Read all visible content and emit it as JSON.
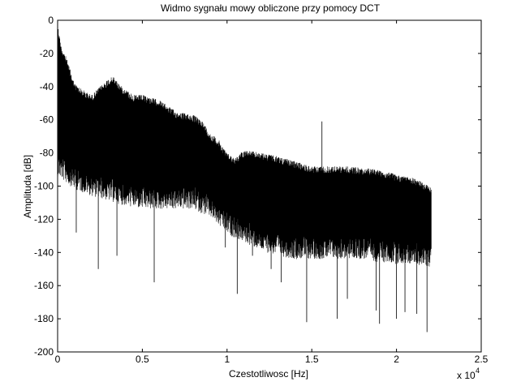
{
  "chart_data": {
    "type": "line",
    "title": "Widmo sygnału mowy obliczone przy pomocy DCT",
    "xlabel": "Czestotliwosc [Hz]",
    "ylabel": "Amplituda [dB]",
    "x_multiplier_label": "x 10",
    "x_multiplier_exponent": "4",
    "xlim": [
      0,
      2.5
    ],
    "ylim": [
      -200,
      0
    ],
    "x_ticks": [
      "0",
      "0.5",
      "1",
      "1.5",
      "2",
      "2.5"
    ],
    "y_ticks": [
      "0",
      "-20",
      "-40",
      "-60",
      "-80",
      "-100",
      "-120",
      "-140",
      "-160",
      "-180",
      "-200"
    ],
    "grid": false,
    "legend": "none",
    "line_color": "#000000",
    "series": [
      {
        "x_range": [
          0,
          2.205
        ],
        "x_unit_scale": 10000,
        "upper_envelope": [
          [
            0.0,
            -2
          ],
          [
            0.02,
            -15
          ],
          [
            0.05,
            -22
          ],
          [
            0.1,
            -38
          ],
          [
            0.15,
            -42
          ],
          [
            0.2,
            -45
          ],
          [
            0.25,
            -40
          ],
          [
            0.3,
            -35
          ],
          [
            0.33,
            -34
          ],
          [
            0.38,
            -40
          ],
          [
            0.45,
            -45
          ],
          [
            0.5,
            -45
          ],
          [
            0.6,
            -48
          ],
          [
            0.7,
            -55
          ],
          [
            0.8,
            -57
          ],
          [
            0.85,
            -60
          ],
          [
            0.9,
            -68
          ],
          [
            0.95,
            -72
          ],
          [
            1.0,
            -80
          ],
          [
            1.05,
            -83
          ],
          [
            1.1,
            -78
          ],
          [
            1.2,
            -80
          ],
          [
            1.3,
            -82
          ],
          [
            1.4,
            -85
          ],
          [
            1.5,
            -88
          ],
          [
            1.6,
            -88
          ],
          [
            1.7,
            -88
          ],
          [
            1.8,
            -89
          ],
          [
            1.9,
            -90
          ],
          [
            2.0,
            -93
          ],
          [
            2.1,
            -95
          ],
          [
            2.2,
            -100
          ]
        ],
        "lower_envelope": [
          [
            0.0,
            -80
          ],
          [
            0.1,
            -88
          ],
          [
            0.2,
            -92
          ],
          [
            0.3,
            -95
          ],
          [
            0.4,
            -98
          ],
          [
            0.5,
            -100
          ],
          [
            0.6,
            -100
          ],
          [
            0.7,
            -100
          ],
          [
            0.8,
            -100
          ],
          [
            0.9,
            -105
          ],
          [
            1.0,
            -115
          ],
          [
            1.1,
            -120
          ],
          [
            1.2,
            -125
          ],
          [
            1.3,
            -128
          ],
          [
            1.4,
            -130
          ],
          [
            1.5,
            -130
          ],
          [
            1.6,
            -130
          ],
          [
            1.7,
            -130
          ],
          [
            1.8,
            -130
          ],
          [
            1.9,
            -132
          ],
          [
            2.0,
            -133
          ],
          [
            2.1,
            -133
          ],
          [
            2.2,
            -135
          ]
        ],
        "spikes": [
          [
            0.11,
            -128
          ],
          [
            0.24,
            -150
          ],
          [
            0.35,
            -142
          ],
          [
            0.57,
            -158
          ],
          [
            0.99,
            -137
          ],
          [
            1.06,
            -165
          ],
          [
            1.15,
            -142
          ],
          [
            1.26,
            -150
          ],
          [
            1.32,
            -158
          ],
          [
            1.47,
            -182
          ],
          [
            1.56,
            -61
          ],
          [
            1.65,
            -180
          ],
          [
            1.71,
            -168
          ],
          [
            1.88,
            -175
          ],
          [
            1.9,
            -183
          ],
          [
            2.0,
            -180
          ],
          [
            2.05,
            -176
          ],
          [
            2.12,
            -177
          ],
          [
            2.18,
            -188
          ]
        ]
      }
    ]
  }
}
